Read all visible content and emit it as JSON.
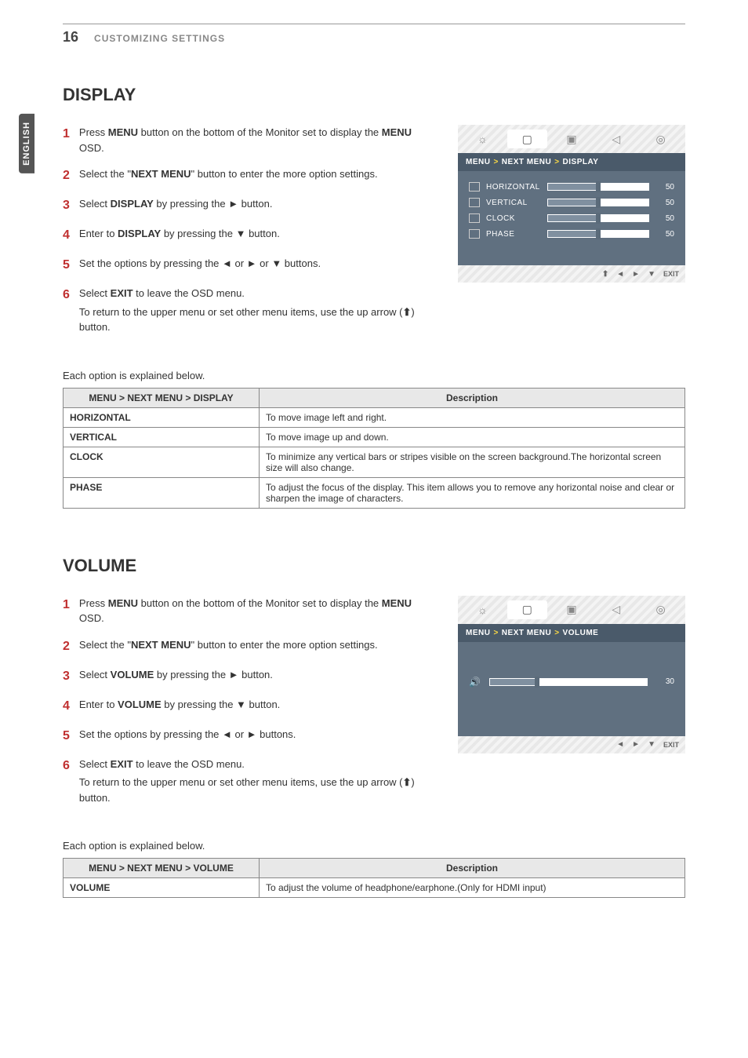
{
  "page_number": "16",
  "page_header": "CUSTOMIZING SETTINGS",
  "side_tab": "ENGLISH",
  "display": {
    "title": "DISPLAY",
    "steps": [
      {
        "num": "1",
        "html": "Press <b>MENU</b> button on the bottom of the Monitor set to display the <b>MENU</b> OSD."
      },
      {
        "num": "2",
        "html": "Select the \"<b>NEXT MENU</b>\" button to enter the more option settings."
      },
      {
        "num": "3",
        "html": "Select <b>DISPLAY</b> by pressing the ► button."
      },
      {
        "num": "4",
        "html": "Enter to <b>DISPLAY</b> by pressing the ▼ button."
      },
      {
        "num": "5",
        "html": "Set the options by pressing the ◄ or ► or ▼ buttons."
      },
      {
        "num": "6",
        "html": "Select <b>EXIT</b> to leave the OSD menu.",
        "sub": "To return to the upper menu or set other menu items, use the up arrow (<span class=\"up-arrow-glyph\">⬆</span>) button."
      }
    ],
    "osd": {
      "breadcrumb": [
        "MENU",
        "NEXT MENU",
        "DISPLAY"
      ],
      "rows": [
        {
          "label": "HORIZONTAL",
          "value": "50",
          "fill_pct": 50
        },
        {
          "label": "VERTICAL",
          "value": "50",
          "fill_pct": 50
        },
        {
          "label": "CLOCK",
          "value": "50",
          "fill_pct": 50
        },
        {
          "label": "PHASE",
          "value": "50",
          "fill_pct": 50
        }
      ],
      "footer": [
        "⬆",
        "◄",
        "►",
        "▼",
        "EXIT"
      ],
      "active_tab_index": 1,
      "tab_icons": [
        "☼",
        "▢",
        "▣",
        "◁",
        "◎"
      ]
    },
    "explain_intro": "Each option is explained below.",
    "table": {
      "headers": [
        "MENU > NEXT MENU > DISPLAY",
        "Description"
      ],
      "rows": [
        [
          "HORIZONTAL",
          "To move image left and right."
        ],
        [
          "VERTICAL",
          "To move image up and down."
        ],
        [
          "CLOCK",
          "To minimize any vertical bars or stripes visible on the screen background.The horizontal screen size will also change."
        ],
        [
          "PHASE",
          "To adjust the focus of the display. This item allows you to remove any horizontal noise and clear or sharpen the image of characters."
        ]
      ]
    }
  },
  "volume": {
    "title": "VOLUME",
    "steps": [
      {
        "num": "1",
        "html": "Press <b>MENU</b> button on the bottom of the Monitor set to display the <b>MENU</b> OSD."
      },
      {
        "num": "2",
        "html": "Select the \"<b>NEXT MENU</b>\" button to enter the more option settings."
      },
      {
        "num": "3",
        "html": "Select <b>VOLUME</b> by pressing the ► button."
      },
      {
        "num": "4",
        "html": "Enter to <b>VOLUME</b> by pressing the ▼ button."
      },
      {
        "num": "5",
        "html": "Set the options by pressing the ◄ or ► buttons."
      },
      {
        "num": "6",
        "html": "Select <b>EXIT</b> to leave the OSD menu.",
        "sub": "To return to the upper menu or set other menu items, use the up arrow (<span class=\"up-arrow-glyph\">⬆</span>) button."
      }
    ],
    "osd": {
      "breadcrumb": [
        "MENU",
        "NEXT MENU",
        "VOLUME"
      ],
      "value": "30",
      "fill_pct": 30,
      "footer": [
        "◄",
        "►",
        "▼",
        "EXIT"
      ],
      "active_tab_index": 1,
      "tab_icons": [
        "☼",
        "▢",
        "▣",
        "◁",
        "◎"
      ]
    },
    "explain_intro": "Each option is explained below.",
    "table": {
      "headers": [
        "MENU > NEXT MENU > VOLUME",
        "Description"
      ],
      "rows": [
        [
          "VOLUME",
          "To adjust the volume of headphone/earphone.(Only for HDMI input)"
        ]
      ]
    }
  },
  "colors": {
    "step_num": "#c03030",
    "osd_header": "#4a5a6a",
    "osd_body": "#607080",
    "table_header_bg": "#e8e8e8",
    "border": "#888888"
  }
}
